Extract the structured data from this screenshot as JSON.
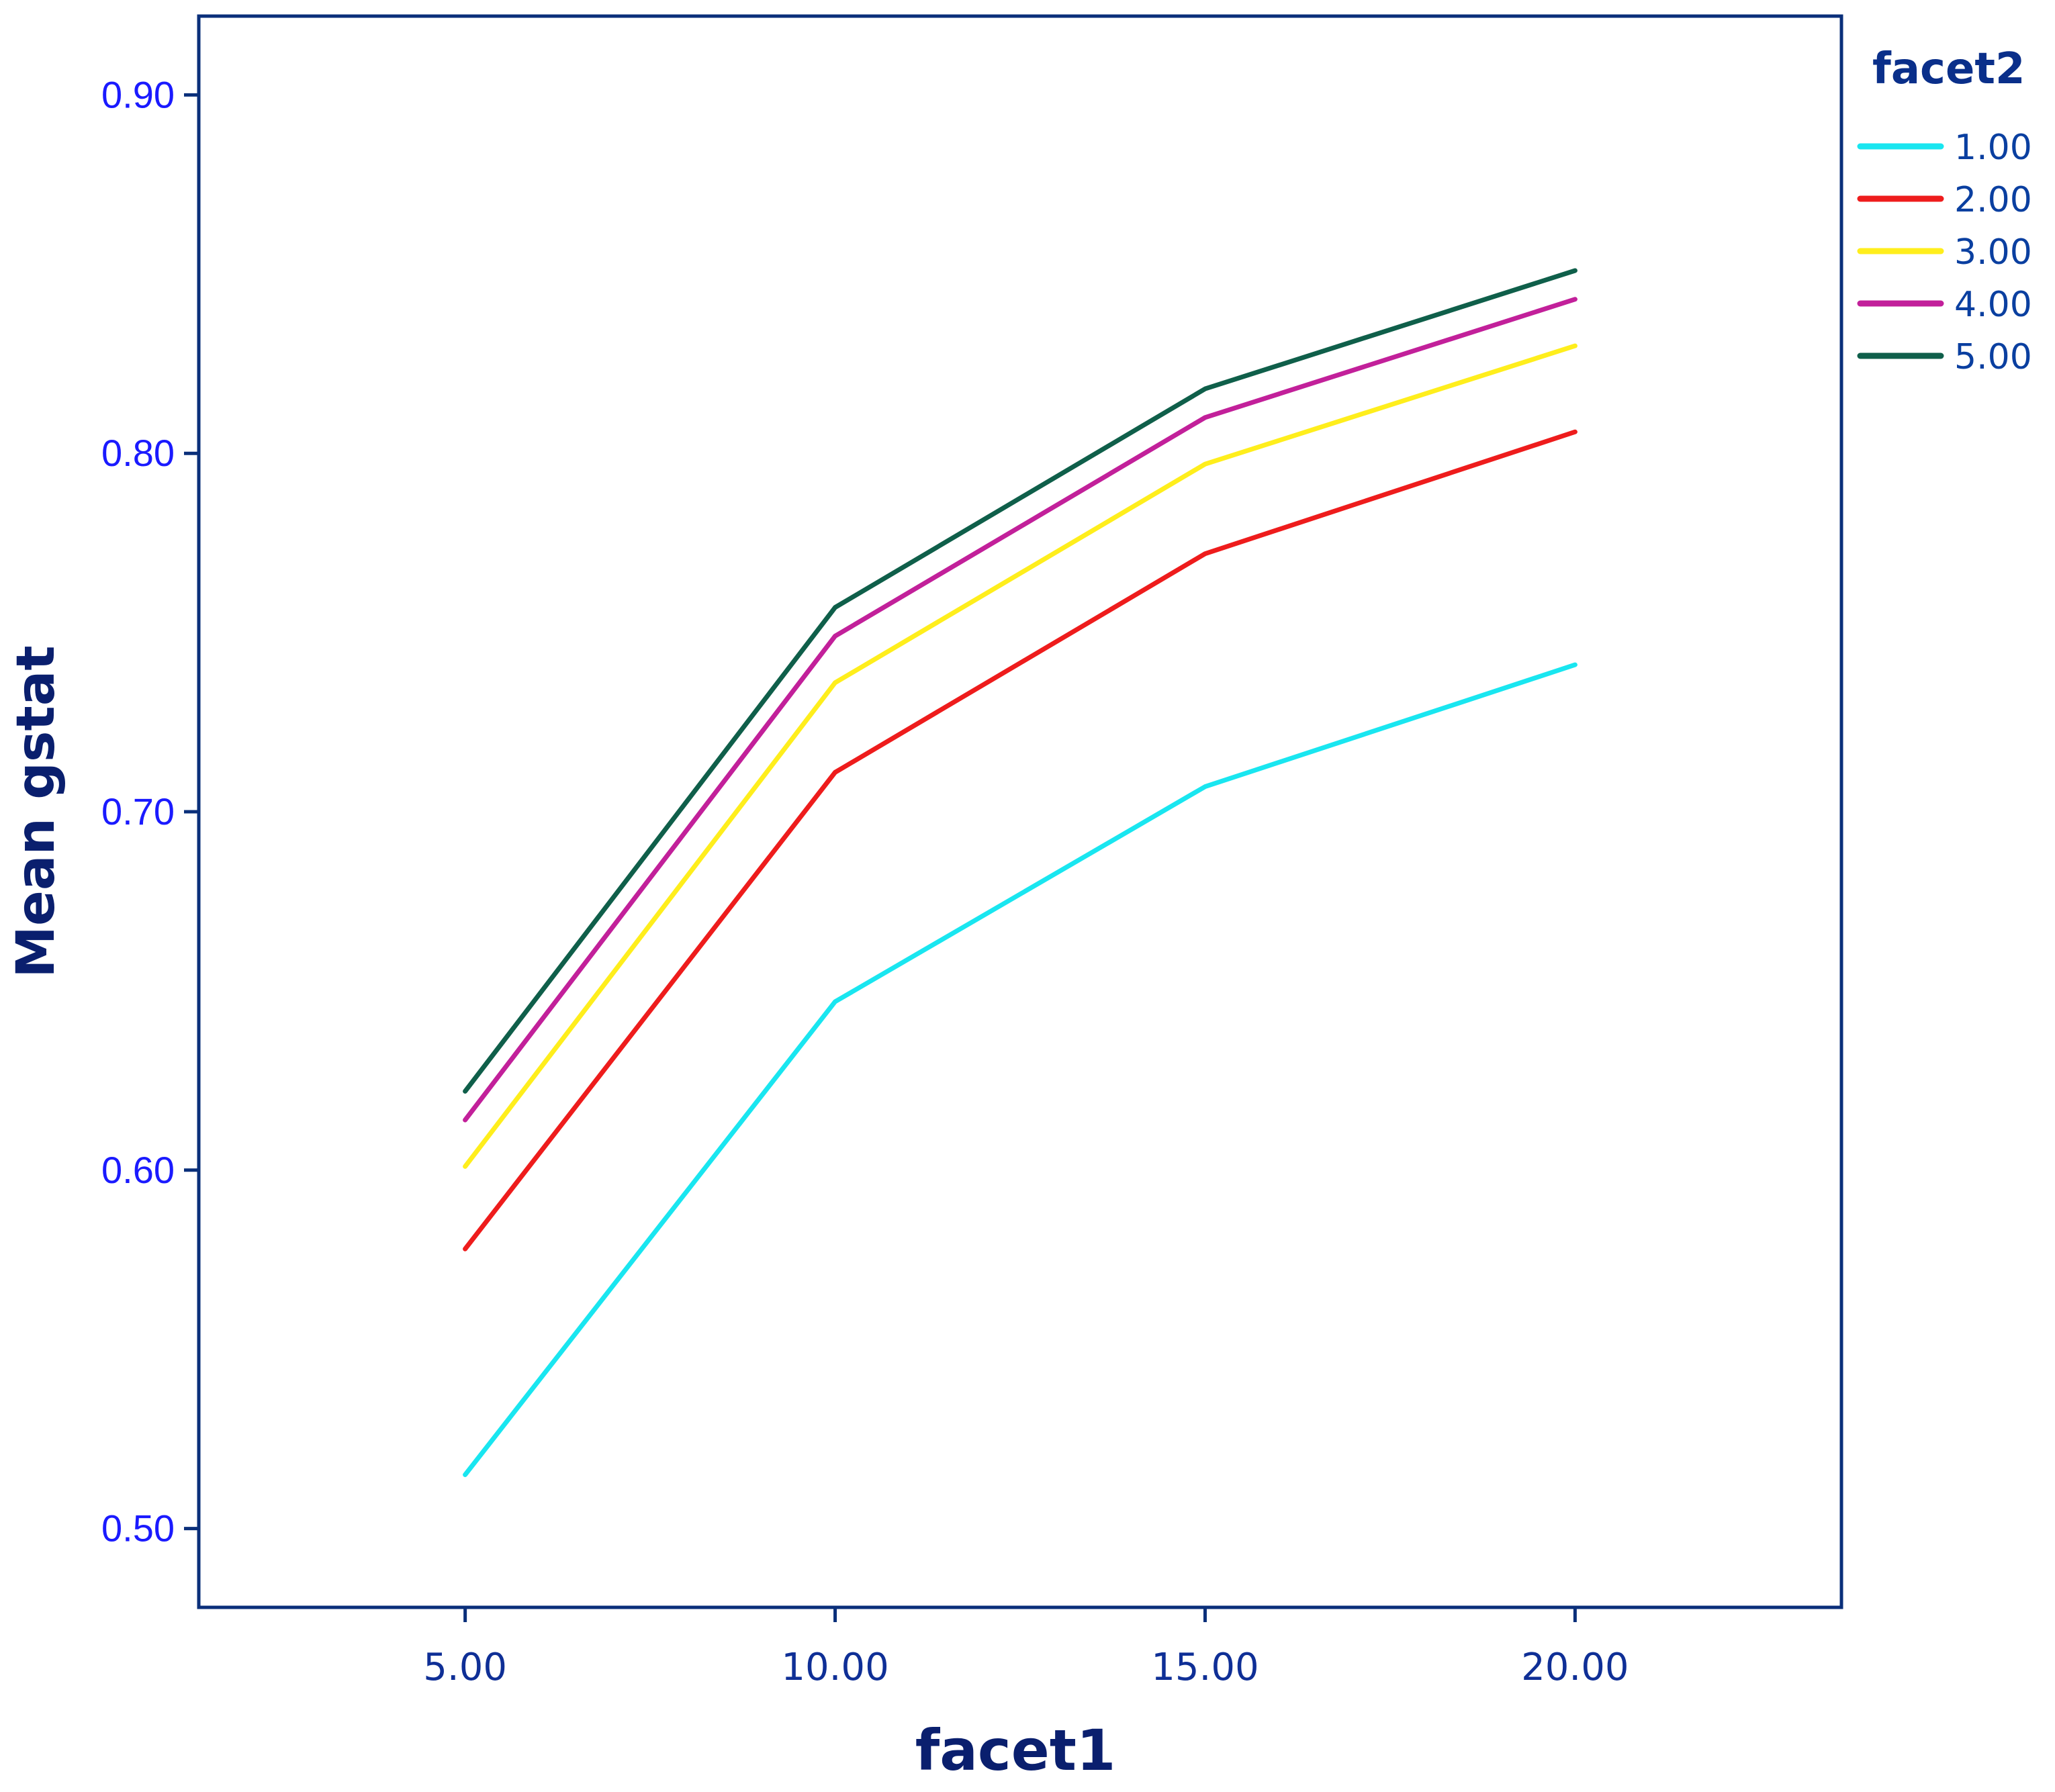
{
  "chart_data": {
    "type": "line",
    "xlabel": "facet1",
    "ylabel": "Mean gstat",
    "x": [
      5,
      10,
      15,
      20
    ],
    "x_tick_labels": [
      "5.00",
      "10.00",
      "15.00",
      "20.00"
    ],
    "xlim": [
      1.4,
      23.6
    ],
    "y_tick_values": [
      0.5,
      0.6,
      0.7,
      0.8,
      0.9
    ],
    "y_tick_labels": [
      "0.50",
      "0.60",
      "0.70",
      "0.80",
      "0.90"
    ],
    "ylim": [
      0.478,
      0.922
    ],
    "grid": false,
    "legend": {
      "title": "facet2",
      "placement": "top-right-outside"
    },
    "series": [
      {
        "name": "1.00",
        "color": "#19e6f0",
        "values": [
          0.515,
          0.647,
          0.707,
          0.741
        ]
      },
      {
        "name": "2.00",
        "color": "#ee1c1c",
        "values": [
          0.578,
          0.711,
          0.772,
          0.806
        ]
      },
      {
        "name": "3.00",
        "color": "#ffee1c",
        "values": [
          0.601,
          0.736,
          0.797,
          0.83
        ]
      },
      {
        "name": "4.00",
        "color": "#c2209a",
        "values": [
          0.614,
          0.749,
          0.81,
          0.843
        ]
      },
      {
        "name": "5.00",
        "color": "#0f5f4a",
        "values": [
          0.622,
          0.757,
          0.818,
          0.851
        ]
      }
    ]
  }
}
